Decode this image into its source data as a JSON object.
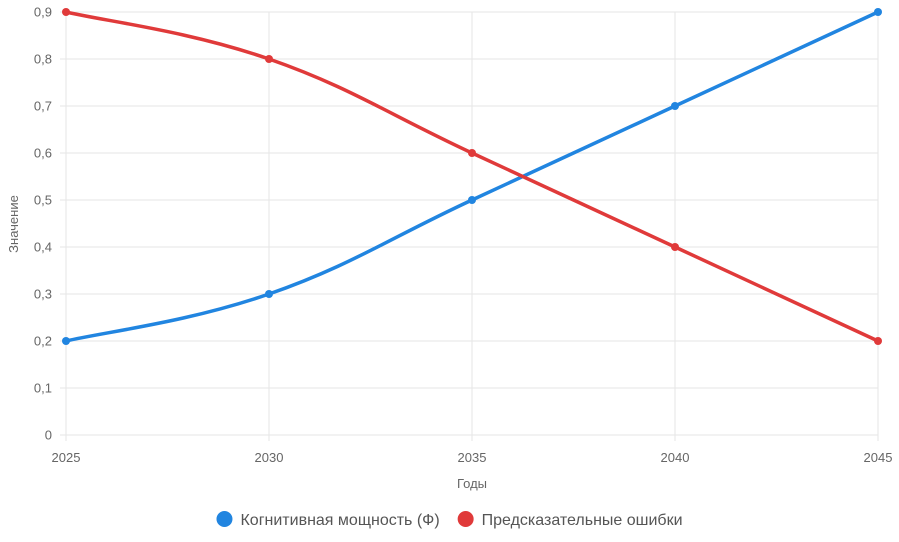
{
  "chart_data": {
    "type": "line",
    "title": "",
    "xlabel": "Годы",
    "ylabel": "Значение",
    "x": [
      2025,
      2030,
      2035,
      2040,
      2045
    ],
    "x_tick_labels": [
      "2025",
      "2030",
      "2035",
      "2040",
      "2045"
    ],
    "ylim": [
      0,
      0.9
    ],
    "y_ticks": [
      0,
      0.1,
      0.2,
      0.3,
      0.4,
      0.5,
      0.6,
      0.7,
      0.8,
      0.9
    ],
    "y_tick_labels": [
      "0",
      "0,1",
      "0,2",
      "0,3",
      "0,4",
      "0,5",
      "0,6",
      "0,7",
      "0,8",
      "0,9"
    ],
    "grid": true,
    "legend_position": "bottom",
    "series": [
      {
        "name": "Когнитивная мощность (Ф)",
        "color": "#2185e0",
        "values": [
          0.2,
          0.3,
          0.5,
          0.7,
          0.9
        ]
      },
      {
        "name": "Предсказательные ошибки",
        "color": "#e03a3a",
        "values": [
          0.9,
          0.8,
          0.6,
          0.4,
          0.2
        ]
      }
    ]
  }
}
